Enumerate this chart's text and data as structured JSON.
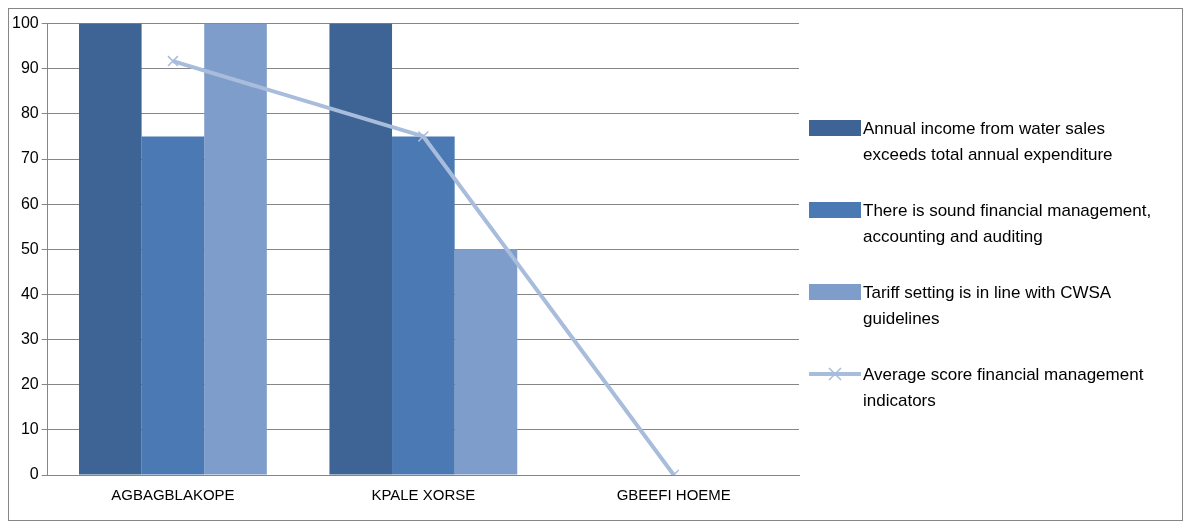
{
  "chart_data": {
    "type": "bar",
    "categories": [
      "AGBAGBLAKOPE",
      "KPALE XORSE",
      "GBEEFI HOEME"
    ],
    "series": [
      {
        "name": "Annual income from water sales exceeds total annual expenditure",
        "color": "#3e6495",
        "values": [
          100,
          100,
          0
        ]
      },
      {
        "name": "There is sound financial management, accounting and auditing",
        "color": "#4a79b3",
        "values": [
          75,
          75,
          0
        ]
      },
      {
        "name": "Tariff setting is in line with CWSA guidelines",
        "color": "#7f9dca",
        "values": [
          100,
          50,
          0
        ]
      },
      {
        "name": "Average score financial management indicators",
        "type": "line",
        "color": "#a8bcdc",
        "marker": "cross",
        "values": [
          91.7,
          75,
          0
        ]
      }
    ],
    "ylim": [
      0,
      100
    ],
    "yticks": [
      0,
      10,
      20,
      30,
      40,
      50,
      60,
      70,
      80,
      90,
      100
    ],
    "grid": "y",
    "legend": "right"
  }
}
